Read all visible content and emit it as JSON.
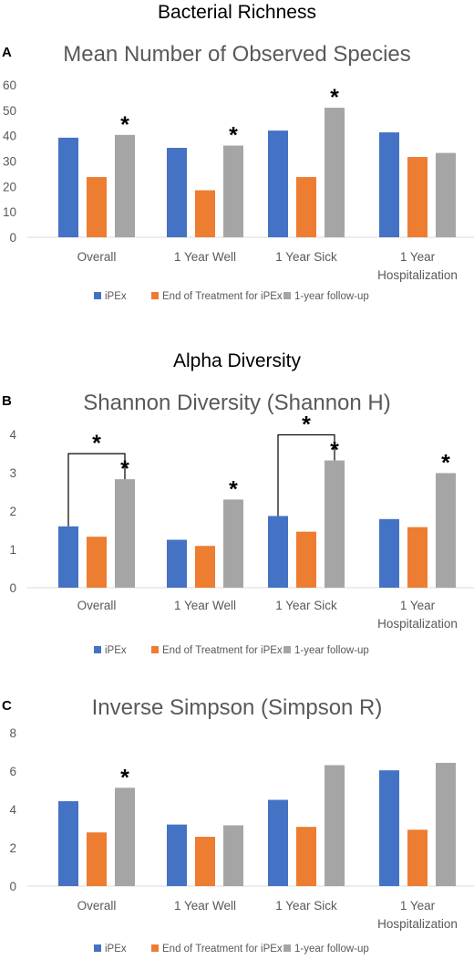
{
  "headings": {
    "section_a": "Bacterial Richness",
    "section_b": "Alpha Diversity"
  },
  "colors": {
    "ipex": "#4472c4",
    "end_treatment": "#ed7d31",
    "followup": "#a5a5a5",
    "title_text": "#595959",
    "axis_line": "#d9d9d9"
  },
  "legend": [
    "iPEx",
    "End of Treatment for iPEx",
    "1-year follow-up"
  ],
  "chart_data": [
    {
      "type": "bar",
      "panel": "A",
      "title": "Mean Number of Observed Species",
      "categories": [
        "Overall",
        "1 Year Well",
        "1 Year Sick",
        "1 Year Hospitalization"
      ],
      "category_lines": [
        [
          "Overall"
        ],
        [
          "1 Year Well"
        ],
        [
          "1 Year Sick"
        ],
        [
          "1 Year",
          "Hospitalization"
        ]
      ],
      "series": [
        {
          "name": "iPEx",
          "values": [
            39.2,
            35.2,
            42.0,
            41.3
          ]
        },
        {
          "name": "End of Treatment for iPEx",
          "values": [
            23.7,
            18.5,
            23.7,
            31.6
          ]
        },
        {
          "name": "1-year follow-up",
          "values": [
            40.3,
            36.1,
            51.0,
            33.2
          ]
        }
      ],
      "ylim": [
        0,
        60
      ],
      "yticks": [
        "0",
        "10",
        "20",
        "30",
        "40",
        "50",
        "60"
      ],
      "grid": false,
      "legend_position": "bottom",
      "annotations": [
        {
          "text": "*",
          "category": 0,
          "series": 2
        },
        {
          "text": "*",
          "category": 1,
          "series": 2
        },
        {
          "text": "*",
          "category": 2,
          "series": 2
        }
      ],
      "brackets": []
    },
    {
      "type": "bar",
      "panel": "B",
      "title": "Shannon Diversity (Shannon H)",
      "categories": [
        "Overall",
        "1 Year Well",
        "1 Year Sick",
        "1 Year Hospitalization"
      ],
      "category_lines": [
        [
          "Overall"
        ],
        [
          "1 Year Well"
        ],
        [
          "1 Year Sick"
        ],
        [
          "1 Year",
          "Hospitalization"
        ]
      ],
      "series": [
        {
          "name": "iPEx",
          "values": [
            1.6,
            1.25,
            1.87,
            1.79
          ]
        },
        {
          "name": "End of Treatment for iPEx",
          "values": [
            1.33,
            1.09,
            1.46,
            1.58
          ]
        },
        {
          "name": "1-year follow-up",
          "values": [
            2.83,
            2.3,
            3.32,
            2.99
          ]
        }
      ],
      "ylim": [
        0,
        4
      ],
      "yticks": [
        "0",
        "1",
        "2",
        "3",
        "4"
      ],
      "grid": false,
      "legend_position": "bottom",
      "annotations": [
        {
          "text": "*",
          "category": 0,
          "series": 2
        },
        {
          "text": "*",
          "category": 1,
          "series": 2
        },
        {
          "text": "*",
          "category": 2,
          "series": 2
        },
        {
          "text": "*",
          "category": 3,
          "series": 2
        }
      ],
      "brackets": [
        {
          "category": 0,
          "from_series": 0,
          "to_series": 2,
          "text": "*"
        },
        {
          "category": 2,
          "from_series": 0,
          "to_series": 2,
          "text": "*"
        }
      ]
    },
    {
      "type": "bar",
      "panel": "C",
      "title": "Inverse Simpson (Simpson R)",
      "categories": [
        "Overall",
        "1 Year Well",
        "1 Year Sick",
        "1 Year Hospitalization"
      ],
      "category_lines": [
        [
          "Overall"
        ],
        [
          "1 Year Well"
        ],
        [
          "1 Year Sick"
        ],
        [
          "1 Year",
          "Hospitalization"
        ]
      ],
      "series": [
        {
          "name": "iPEx",
          "values": [
            4.43,
            3.21,
            4.5,
            6.04
          ]
        },
        {
          "name": "End of Treatment for iPEx",
          "values": [
            2.8,
            2.57,
            3.09,
            2.94
          ]
        },
        {
          "name": "1-year follow-up",
          "values": [
            5.13,
            3.17,
            6.31,
            6.43
          ]
        }
      ],
      "ylim": [
        0,
        8
      ],
      "yticks": [
        "0",
        "2",
        "4",
        "6",
        "8"
      ],
      "grid": false,
      "legend_position": "bottom",
      "annotations": [
        {
          "text": "*",
          "category": 0,
          "series": 2
        }
      ],
      "brackets": []
    }
  ]
}
